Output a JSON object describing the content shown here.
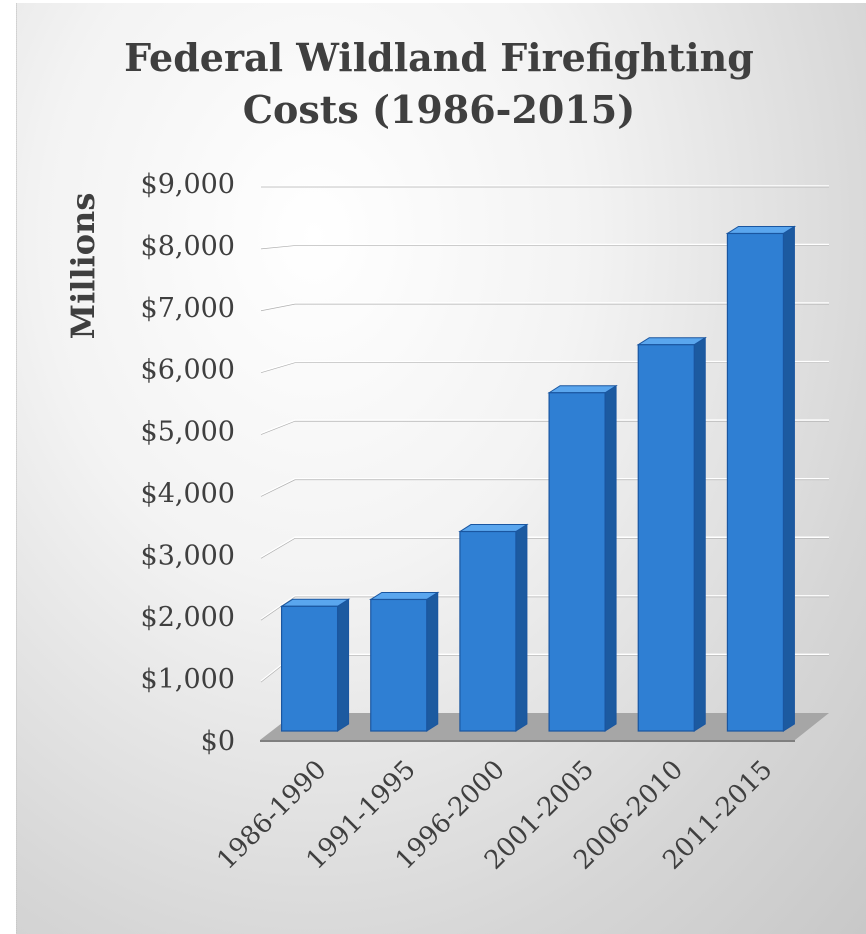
{
  "chart_data": {
    "type": "bar",
    "title_lines": [
      "Federal Wildland Firefighting",
      "Costs (1986-2015)"
    ],
    "ylabel": "Millions",
    "xlabel": "",
    "categories": [
      "1986-1990",
      "1991-1995",
      "1996-2000",
      "2001-2005",
      "2006-2010",
      "2011-2015"
    ],
    "values": [
      1993,
      2110,
      3270,
      5640,
      6460,
      8360
    ],
    "ylim": [
      0,
      9000
    ],
    "yticks": [
      0,
      1000,
      2000,
      3000,
      4000,
      5000,
      6000,
      7000,
      8000,
      9000
    ],
    "ytick_labels": [
      "$0",
      "$1,000",
      "$2,000",
      "$3,000",
      "$4,000",
      "$5,000",
      "$6,000",
      "$7,000",
      "$8,000",
      "$9,000"
    ],
    "grid": true,
    "legend": "none",
    "style": "3d-columns",
    "colors": {
      "bar_front": "#2f7fd3",
      "bar_top": "#5aa6ee",
      "bar_side": "#1c5aa0",
      "bar_edge": "#1a56a0",
      "text": "#3f3f3f",
      "grid": "#ffffff",
      "floor": "#a6a6a6"
    }
  }
}
